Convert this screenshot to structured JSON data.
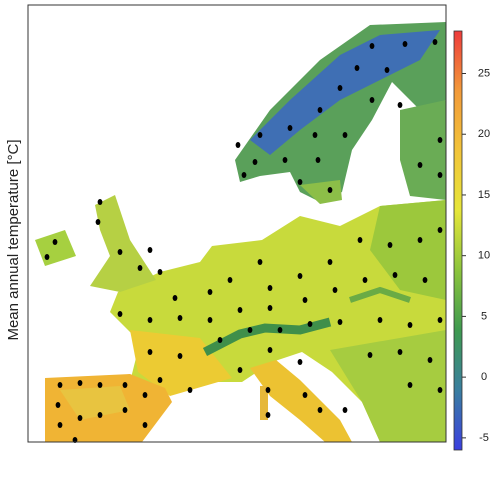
{
  "y_label": "Mean annual temperature [°C]",
  "colorbar": {
    "lim": [
      -6,
      28.5
    ],
    "ticks": [
      -5,
      0,
      5,
      10,
      15,
      20,
      25
    ],
    "colors": [
      "#3b3fe0",
      "#3a7fa0",
      "#3f9a50",
      "#8cc43c",
      "#e6e63a",
      "#f2c43a",
      "#f29a3a",
      "#ee3b3b"
    ]
  }
}
